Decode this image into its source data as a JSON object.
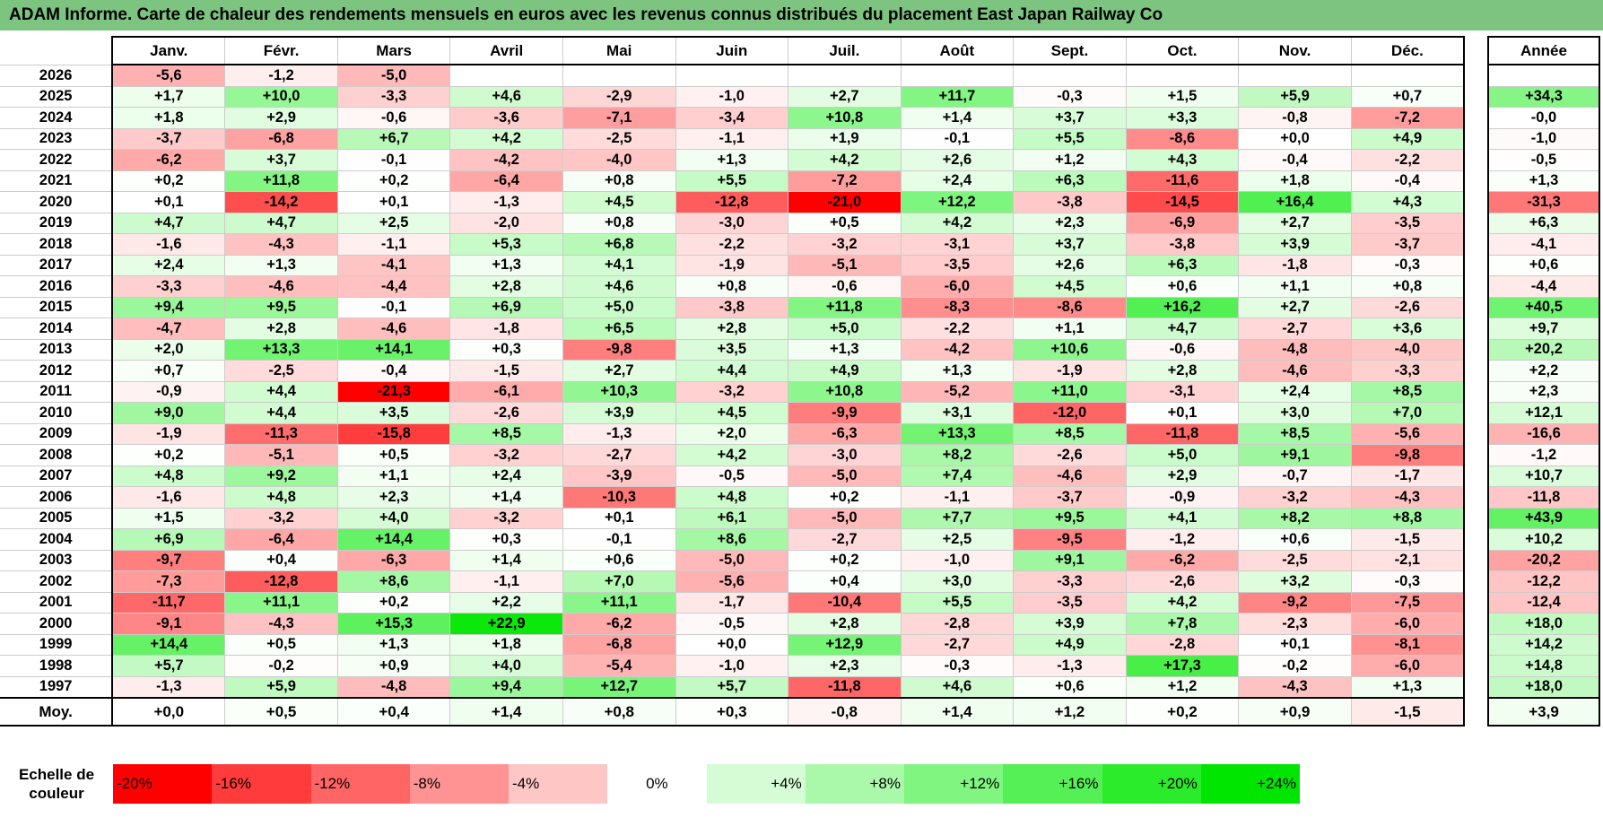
{
  "title": "ADAM Informe. Carte de chaleur des rendements mensuels en euros avec les revenus connus distribués du placement East Japan Railway Co",
  "chart_data": {
    "type": "heatmap",
    "title": "ADAM Informe. Carte de chaleur des rendements mensuels en euros avec les revenus connus distribués du placement East Japan Railway Co",
    "columns": [
      "Janv.",
      "Févr.",
      "Mars",
      "Avril",
      "Mai",
      "Juin",
      "Juil.",
      "Août",
      "Sept.",
      "Oct.",
      "Nov.",
      "Déc."
    ],
    "year_header": "Année",
    "rows": [
      {
        "year": "2026",
        "values": [
          "-5,6",
          "-1,2",
          "-5,0",
          "",
          "",
          "",
          "",
          "",
          "",
          "",
          "",
          ""
        ],
        "annual": ""
      },
      {
        "year": "2025",
        "values": [
          "+1,7",
          "+10,0",
          "-3,3",
          "+4,6",
          "-2,9",
          "-1,0",
          "+2,7",
          "+11,7",
          "-0,3",
          "+1,5",
          "+5,9",
          "+0,7"
        ],
        "annual": "+34,3"
      },
      {
        "year": "2024",
        "values": [
          "+1,8",
          "+2,9",
          "-0,6",
          "-3,6",
          "-7,1",
          "-3,4",
          "+10,8",
          "+1,4",
          "+3,7",
          "+3,3",
          "-0,8",
          "-7,2"
        ],
        "annual": "-0,0"
      },
      {
        "year": "2023",
        "values": [
          "-3,7",
          "-6,8",
          "+6,7",
          "+4,2",
          "-2,5",
          "-1,1",
          "+1,9",
          "-0,1",
          "+5,5",
          "-8,6",
          "+0,0",
          "+4,9"
        ],
        "annual": "-1,0"
      },
      {
        "year": "2022",
        "values": [
          "-6,2",
          "+3,7",
          "-0,1",
          "-4,2",
          "-4,0",
          "+1,3",
          "+4,2",
          "+2,6",
          "+1,2",
          "+4,3",
          "-0,4",
          "-2,2"
        ],
        "annual": "-0,5"
      },
      {
        "year": "2021",
        "values": [
          "+0,2",
          "+11,8",
          "+0,2",
          "-6,4",
          "+0,8",
          "+5,5",
          "-7,2",
          "+2,4",
          "+6,3",
          "-11,6",
          "+1,8",
          "-0,4"
        ],
        "annual": "+1,3"
      },
      {
        "year": "2020",
        "values": [
          "+0,1",
          "-14,2",
          "+0,1",
          "-1,3",
          "+4,5",
          "-12,8",
          "-21,0",
          "+12,2",
          "-3,8",
          "-14,5",
          "+16,4",
          "+4,3"
        ],
        "annual": "-31,3"
      },
      {
        "year": "2019",
        "values": [
          "+4,7",
          "+4,7",
          "+2,5",
          "-2,0",
          "+0,8",
          "-3,0",
          "+0,5",
          "+4,2",
          "+2,3",
          "-6,9",
          "+2,7",
          "-3,5"
        ],
        "annual": "+6,3"
      },
      {
        "year": "2018",
        "values": [
          "-1,6",
          "-4,3",
          "-1,1",
          "+5,3",
          "+6,8",
          "-2,2",
          "-3,2",
          "-3,1",
          "+3,7",
          "-3,8",
          "+3,9",
          "-3,7"
        ],
        "annual": "-4,1"
      },
      {
        "year": "2017",
        "values": [
          "+2,4",
          "+1,3",
          "-4,1",
          "+1,3",
          "+4,1",
          "-1,9",
          "-5,1",
          "-3,5",
          "+2,6",
          "+6,3",
          "-1,8",
          "-0,3"
        ],
        "annual": "+0,6"
      },
      {
        "year": "2016",
        "values": [
          "-3,3",
          "-4,6",
          "-4,4",
          "+2,8",
          "+4,6",
          "+0,8",
          "-0,6",
          "-6,0",
          "+4,5",
          "+0,6",
          "+1,1",
          "+0,8"
        ],
        "annual": "-4,4"
      },
      {
        "year": "2015",
        "values": [
          "+9,4",
          "+9,5",
          "-0,1",
          "+6,9",
          "+5,0",
          "-3,8",
          "+11,8",
          "-8,3",
          "-8,6",
          "+16,2",
          "+2,7",
          "-2,6"
        ],
        "annual": "+40,5"
      },
      {
        "year": "2014",
        "values": [
          "-4,7",
          "+2,8",
          "-4,6",
          "-1,8",
          "+6,5",
          "+2,8",
          "+5,0",
          "-2,2",
          "+1,1",
          "+4,7",
          "-2,7",
          "+3,6"
        ],
        "annual": "+9,7"
      },
      {
        "year": "2013",
        "values": [
          "+2,0",
          "+13,3",
          "+14,1",
          "+0,3",
          "-9,8",
          "+3,5",
          "+1,3",
          "-4,2",
          "+10,6",
          "-0,6",
          "-4,8",
          "-4,0"
        ],
        "annual": "+20,2"
      },
      {
        "year": "2012",
        "values": [
          "+0,7",
          "-2,5",
          "-0,4",
          "-1,5",
          "+2,7",
          "+4,4",
          "+4,9",
          "+1,3",
          "-1,9",
          "+2,8",
          "-4,6",
          "-3,3"
        ],
        "annual": "+2,2"
      },
      {
        "year": "2011",
        "values": [
          "-0,9",
          "+4,4",
          "-21,3",
          "-6,1",
          "+10,3",
          "-3,2",
          "+10,8",
          "-5,2",
          "+11,0",
          "-3,1",
          "+2,4",
          "+8,5"
        ],
        "annual": "+2,3"
      },
      {
        "year": "2010",
        "values": [
          "+9,0",
          "+4,4",
          "+3,5",
          "-2,6",
          "+3,9",
          "+4,5",
          "-9,9",
          "+3,1",
          "-12,0",
          "+0,1",
          "+3,0",
          "+7,0"
        ],
        "annual": "+12,1"
      },
      {
        "year": "2009",
        "values": [
          "-1,9",
          "-11,3",
          "-15,8",
          "+8,5",
          "-1,3",
          "+2,0",
          "-6,3",
          "+13,3",
          "+8,5",
          "-11,8",
          "+8,5",
          "-5,6"
        ],
        "annual": "-16,6"
      },
      {
        "year": "2008",
        "values": [
          "+0,2",
          "-5,1",
          "+0,5",
          "-3,2",
          "-2,7",
          "+4,2",
          "-3,0",
          "+8,2",
          "-2,6",
          "+5,0",
          "+9,1",
          "-9,8"
        ],
        "annual": "-1,2"
      },
      {
        "year": "2007",
        "values": [
          "+4,8",
          "+9,2",
          "+1,1",
          "+2,4",
          "-3,9",
          "-0,5",
          "-5,0",
          "+7,4",
          "-4,6",
          "+2,9",
          "-0,7",
          "-1,7"
        ],
        "annual": "+10,7"
      },
      {
        "year": "2006",
        "values": [
          "-1,6",
          "+4,8",
          "+2,3",
          "+1,4",
          "-10,3",
          "+4,8",
          "+0,2",
          "-1,1",
          "-3,7",
          "-0,9",
          "-3,2",
          "-4,3"
        ],
        "annual": "-11,8"
      },
      {
        "year": "2005",
        "values": [
          "+1,5",
          "-3,2",
          "+4,0",
          "-3,2",
          "+0,1",
          "+6,1",
          "-5,0",
          "+7,7",
          "+9,5",
          "+4,1",
          "+8,2",
          "+8,8"
        ],
        "annual": "+43,9"
      },
      {
        "year": "2004",
        "values": [
          "+6,9",
          "-6,4",
          "+14,4",
          "+0,3",
          "-0,1",
          "+8,6",
          "-2,7",
          "+2,5",
          "-9,5",
          "-1,2",
          "+0,6",
          "-1,5"
        ],
        "annual": "+10,2"
      },
      {
        "year": "2003",
        "values": [
          "-9,7",
          "+0,4",
          "-6,3",
          "+1,4",
          "+0,6",
          "-5,0",
          "+0,2",
          "-1,0",
          "+9,1",
          "-6,2",
          "-2,5",
          "-2,1"
        ],
        "annual": "-20,2"
      },
      {
        "year": "2002",
        "values": [
          "-7,3",
          "-12,8",
          "+8,6",
          "-1,1",
          "+7,0",
          "-5,6",
          "+0,4",
          "+3,0",
          "-3,3",
          "-2,6",
          "+3,2",
          "-0,3"
        ],
        "annual": "-12,2"
      },
      {
        "year": "2001",
        "values": [
          "-11,7",
          "+11,1",
          "+0,2",
          "+2,2",
          "+11,1",
          "-1,7",
          "-10,4",
          "+5,5",
          "-3,5",
          "+4,2",
          "-9,2",
          "-7,5"
        ],
        "annual": "-12,4"
      },
      {
        "year": "2000",
        "values": [
          "-9,1",
          "-4,3",
          "+15,3",
          "+22,9",
          "-6,2",
          "-0,5",
          "+2,8",
          "-2,8",
          "+3,9",
          "+7,8",
          "-2,3",
          "-6,0"
        ],
        "annual": "+18,0"
      },
      {
        "year": "1999",
        "values": [
          "+14,4",
          "+0,5",
          "+1,3",
          "+1,8",
          "-6,8",
          "+0,0",
          "+12,9",
          "-2,7",
          "+4,9",
          "-2,8",
          "+0,1",
          "-8,1"
        ],
        "annual": "+14,2"
      },
      {
        "year": "1998",
        "values": [
          "+5,7",
          "-0,2",
          "+0,9",
          "+4,0",
          "-5,4",
          "-1,0",
          "+2,3",
          "-0,3",
          "-1,3",
          "+17,3",
          "-0,2",
          "-6,0"
        ],
        "annual": "+14,8"
      },
      {
        "year": "1997",
        "values": [
          "-1,3",
          "+5,9",
          "-4,8",
          "+9,4",
          "+12,7",
          "+5,7",
          "-11,8",
          "+4,6",
          "+0,6",
          "+1,2",
          "-4,3",
          "+1,3"
        ],
        "annual": "+18,0"
      }
    ],
    "average": {
      "label": "Moy.",
      "values": [
        "+0,0",
        "+0,5",
        "+0,4",
        "+1,4",
        "+0,8",
        "+0,3",
        "-0,8",
        "+1,4",
        "+1,2",
        "+0,2",
        "+0,9",
        "-1,5"
      ],
      "annual": "+3,9"
    },
    "color_scale": {
      "label": "Echelle de couleur",
      "steps": [
        {
          "label": "-20%",
          "value": -20,
          "color": "#ff0000"
        },
        {
          "label": "-16%",
          "value": -16,
          "color": "#ff3b3b"
        },
        {
          "label": "-12%",
          "value": -12,
          "color": "#ff6565"
        },
        {
          "label": "-8%",
          "value": -8,
          "color": "#ff9292"
        },
        {
          "label": "-4%",
          "value": -4,
          "color": "#ffc6c6"
        },
        {
          "label": "0%",
          "value": 0,
          "color": "#ffffff"
        },
        {
          "label": "+4%",
          "value": 4,
          "color": "#d5fcd5"
        },
        {
          "label": "+8%",
          "value": 8,
          "color": "#aaf8aa"
        },
        {
          "label": "+12%",
          "value": 12,
          "color": "#80f580"
        },
        {
          "label": "+16%",
          "value": 16,
          "color": "#55f055"
        },
        {
          "label": "+20%",
          "value": 20,
          "color": "#2bec2b"
        },
        {
          "label": "+24%",
          "value": 24,
          "color": "#00e600"
        }
      ]
    }
  }
}
